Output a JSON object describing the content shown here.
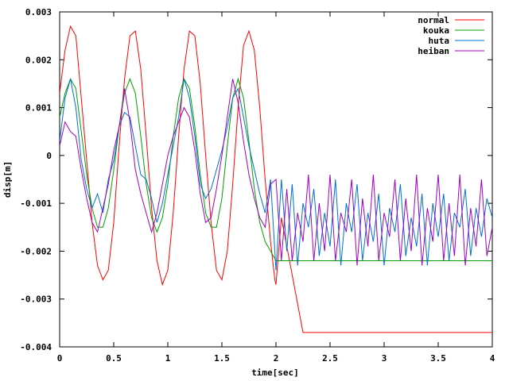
{
  "chart_data": {
    "type": "line",
    "title": "",
    "xlabel": "time[sec]",
    "ylabel": "disp[m]",
    "xlim": [
      0,
      4
    ],
    "ylim": [
      -0.004,
      0.003
    ],
    "x_ticks": [
      "0",
      "0.5",
      "1",
      "1.5",
      "2",
      "2.5",
      "3",
      "3.5",
      "4"
    ],
    "y_ticks": [
      "0.003",
      "0.002",
      "0.001",
      "0",
      "-0.001",
      "-0.002",
      "-0.003",
      "-0.004"
    ],
    "grid": false,
    "legend_position": "top-right",
    "series": [
      {
        "name": "normal",
        "color": "#ff0000",
        "x": [
          0.0,
          0.05,
          0.1,
          0.15,
          0.2,
          0.25,
          0.3,
          0.35,
          0.4,
          0.45,
          0.5,
          0.55,
          0.6,
          0.65,
          0.7,
          0.75,
          0.8,
          0.85,
          0.9,
          0.95,
          1.0,
          1.05,
          1.1,
          1.15,
          1.2,
          1.25,
          1.3,
          1.35,
          1.4,
          1.45,
          1.5,
          1.55,
          1.6,
          1.65,
          1.7,
          1.75,
          1.8,
          1.85,
          1.9,
          1.95,
          1.99,
          2.0,
          2.05,
          2.25,
          2.5,
          2.75,
          3.0,
          3.25,
          3.5,
          3.75,
          4.0
        ],
        "y": [
          0.0013,
          0.0022,
          0.0027,
          0.0025,
          0.0012,
          -0.0001,
          -0.0014,
          -0.0023,
          -0.0026,
          -0.0024,
          -0.0014,
          0.0002,
          0.0016,
          0.0025,
          0.0026,
          0.0018,
          0.0004,
          -0.0011,
          -0.0022,
          -0.0027,
          -0.0024,
          -0.0012,
          0.0004,
          0.0018,
          0.0026,
          0.0025,
          0.0015,
          0.0,
          -0.0014,
          -0.0024,
          -0.0026,
          -0.002,
          -0.0006,
          0.001,
          0.0023,
          0.0026,
          0.0022,
          0.001,
          -0.0005,
          -0.0018,
          -0.0026,
          -0.0027,
          -0.0013,
          -0.0037,
          -0.0037,
          -0.0037,
          -0.0037,
          -0.0037,
          -0.0037,
          -0.0037,
          -0.0037
        ]
      },
      {
        "name": "kouka",
        "color": "#00a000",
        "x": [
          0.0,
          0.05,
          0.1,
          0.15,
          0.2,
          0.25,
          0.3,
          0.35,
          0.4,
          0.45,
          0.5,
          0.55,
          0.6,
          0.65,
          0.7,
          0.75,
          0.8,
          0.85,
          0.9,
          0.95,
          1.0,
          1.05,
          1.1,
          1.15,
          1.2,
          1.25,
          1.3,
          1.35,
          1.4,
          1.45,
          1.5,
          1.55,
          1.6,
          1.65,
          1.7,
          1.75,
          1.8,
          1.85,
          1.9,
          1.95,
          2.0,
          2.5,
          3.0,
          3.5,
          4.0
        ],
        "y": [
          0.0008,
          0.0013,
          0.0016,
          0.0014,
          0.0005,
          -0.0004,
          -0.0011,
          -0.0015,
          -0.0015,
          -0.0011,
          -0.0003,
          0.0006,
          0.0013,
          0.0016,
          0.0013,
          0.0004,
          -0.0006,
          -0.0013,
          -0.0016,
          -0.0013,
          -0.0006,
          0.0004,
          0.0012,
          0.0016,
          0.0014,
          0.0006,
          -0.0004,
          -0.0012,
          -0.0015,
          -0.0015,
          -0.0009,
          0.0002,
          0.0012,
          0.0016,
          0.0012,
          0.0003,
          -0.0007,
          -0.0014,
          -0.0018,
          -0.002,
          -0.0022,
          -0.0022,
          -0.0022,
          -0.0022,
          -0.0022
        ]
      },
      {
        "name": "huta",
        "color": "#0070d0",
        "x": [
          0.0,
          0.05,
          0.1,
          0.15,
          0.2,
          0.25,
          0.3,
          0.35,
          0.4,
          0.45,
          0.5,
          0.55,
          0.6,
          0.65,
          0.7,
          0.75,
          0.8,
          0.85,
          0.9,
          0.95,
          1.0,
          1.05,
          1.1,
          1.15,
          1.2,
          1.25,
          1.3,
          1.35,
          1.4,
          1.45,
          1.5,
          1.55,
          1.6,
          1.65,
          1.7,
          1.75,
          1.8,
          1.85,
          1.9,
          1.95,
          2.0,
          2.05,
          2.1,
          2.15,
          2.2,
          2.25,
          2.3,
          2.35,
          2.4,
          2.45,
          2.5,
          2.55,
          2.6,
          2.65,
          2.7,
          2.75,
          2.8,
          2.85,
          2.9,
          2.95,
          3.0,
          3.05,
          3.1,
          3.15,
          3.2,
          3.25,
          3.3,
          3.35,
          3.4,
          3.45,
          3.5,
          3.55,
          3.6,
          3.65,
          3.7,
          3.75,
          3.8,
          3.85,
          3.9,
          3.95,
          4.0
        ],
        "y": [
          0.0003,
          0.0012,
          0.0016,
          0.001,
          -0.0001,
          -0.0007,
          -0.0011,
          -0.0008,
          -0.0012,
          -0.0005,
          -0.0001,
          0.0006,
          0.0009,
          0.0008,
          0.0002,
          -0.0004,
          -0.0005,
          -0.0009,
          -0.0014,
          -0.001,
          -0.0004,
          0.0002,
          0.0008,
          0.0016,
          0.0012,
          0.0004,
          -0.0006,
          -0.0009,
          -0.0007,
          -0.0003,
          0.0001,
          0.0006,
          0.0012,
          0.0014,
          0.0008,
          0.0002,
          -0.0003,
          -0.0008,
          -0.0012,
          -0.0005,
          -0.0024,
          -0.0005,
          -0.002,
          -0.0006,
          -0.0023,
          -0.001,
          -0.0015,
          -0.0007,
          -0.0021,
          -0.0012,
          -0.0019,
          -0.0005,
          -0.0023,
          -0.001,
          -0.0016,
          -0.0006,
          -0.0022,
          -0.0012,
          -0.0018,
          -0.0008,
          -0.0023,
          -0.0011,
          -0.0016,
          -0.0006,
          -0.0021,
          -0.0013,
          -0.0019,
          -0.0008,
          -0.0023,
          -0.001,
          -0.0017,
          -0.0008,
          -0.0022,
          -0.0012,
          -0.0015,
          -0.0007,
          -0.0021,
          -0.0011,
          -0.0017,
          -0.0009,
          -0.0013
        ]
      },
      {
        "name": "heiban",
        "color": "#a000c0",
        "x": [
          0.0,
          0.05,
          0.1,
          0.15,
          0.2,
          0.25,
          0.3,
          0.35,
          0.4,
          0.45,
          0.5,
          0.55,
          0.6,
          0.65,
          0.7,
          0.75,
          0.8,
          0.85,
          0.9,
          0.95,
          1.0,
          1.05,
          1.1,
          1.15,
          1.2,
          1.25,
          1.3,
          1.35,
          1.4,
          1.45,
          1.5,
          1.55,
          1.6,
          1.65,
          1.7,
          1.75,
          1.8,
          1.85,
          1.9,
          1.95,
          2.0,
          2.05,
          2.1,
          2.15,
          2.2,
          2.25,
          2.3,
          2.35,
          2.4,
          2.45,
          2.5,
          2.55,
          2.6,
          2.65,
          2.7,
          2.75,
          2.8,
          2.85,
          2.9,
          2.95,
          3.0,
          3.05,
          3.1,
          3.15,
          3.2,
          3.25,
          3.3,
          3.35,
          3.4,
          3.45,
          3.5,
          3.55,
          3.6,
          3.65,
          3.7,
          3.75,
          3.8,
          3.85,
          3.9,
          3.95,
          4.0
        ],
        "y": [
          0.0002,
          0.0007,
          0.0005,
          0.0004,
          -0.0003,
          -0.0009,
          -0.0014,
          -0.0016,
          -0.0011,
          -0.0006,
          0.0001,
          0.0006,
          0.0014,
          0.0007,
          -0.0003,
          -0.0008,
          -0.0012,
          -0.0016,
          -0.0012,
          -0.0006,
          0.0,
          0.0004,
          0.0007,
          0.001,
          0.0008,
          0.0001,
          -0.0008,
          -0.0014,
          -0.0013,
          -0.0007,
          0.0,
          0.0008,
          0.0016,
          0.0011,
          0.0003,
          -0.0004,
          -0.0009,
          -0.0013,
          -0.0015,
          -0.0006,
          -0.0005,
          -0.0022,
          -0.0007,
          -0.0022,
          -0.0012,
          -0.0018,
          -0.0004,
          -0.0022,
          -0.001,
          -0.002,
          -0.0004,
          -0.0022,
          -0.0012,
          -0.0016,
          -0.0005,
          -0.0023,
          -0.0009,
          -0.0019,
          -0.0004,
          -0.0022,
          -0.0012,
          -0.0017,
          -0.0005,
          -0.0022,
          -0.0009,
          -0.002,
          -0.0004,
          -0.0023,
          -0.0011,
          -0.0018,
          -0.0004,
          -0.0022,
          -0.001,
          -0.0021,
          -0.0004,
          -0.0023,
          -0.0011,
          -0.0019,
          -0.0005,
          -0.0021,
          -0.0015
        ]
      }
    ]
  }
}
